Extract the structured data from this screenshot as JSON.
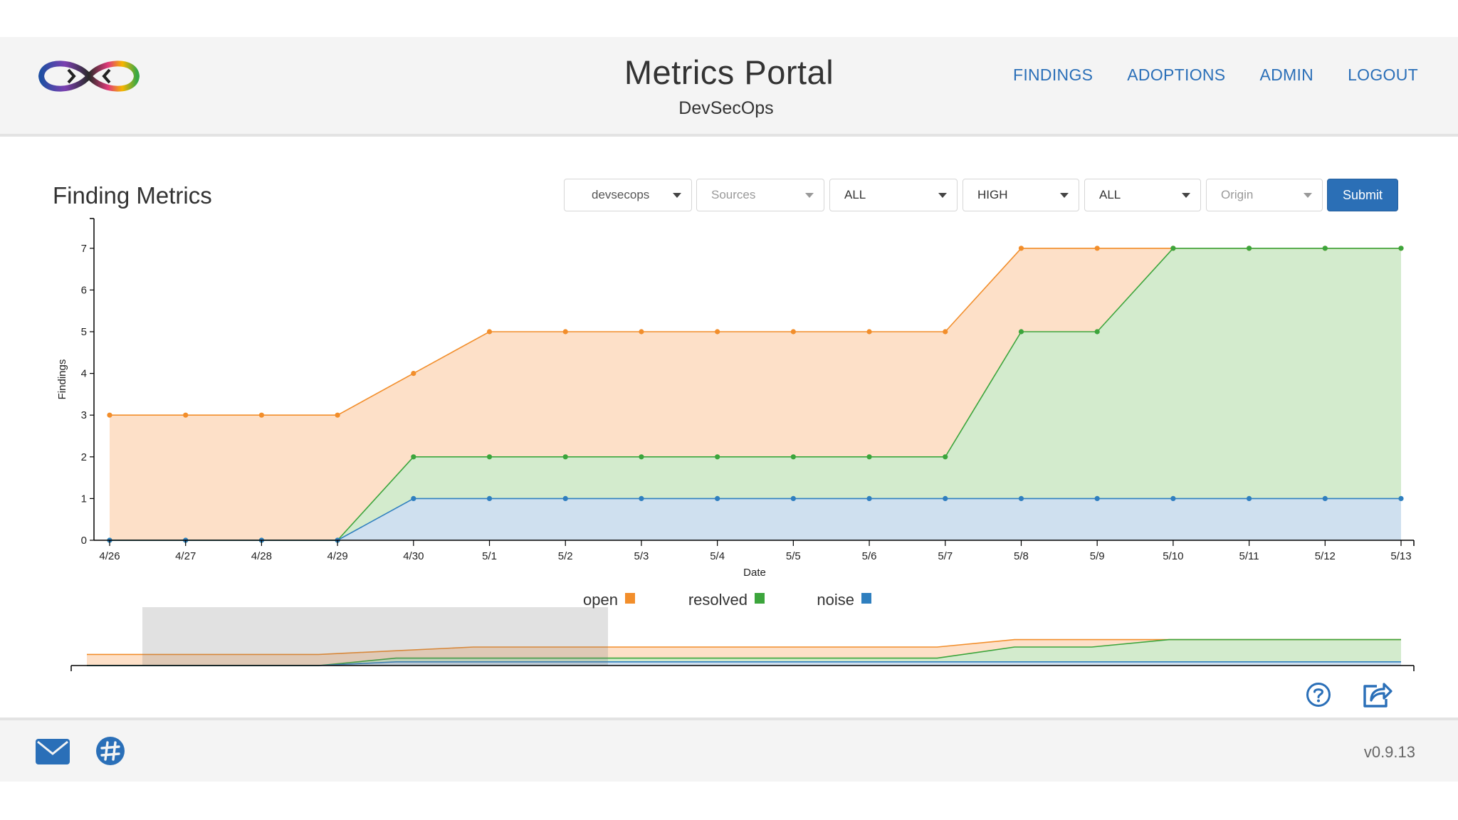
{
  "header": {
    "title": "Metrics Portal",
    "subtitle": "DevSecOps",
    "nav": [
      "FINDINGS",
      "ADOPTIONS",
      "ADMIN",
      "LOGOUT"
    ]
  },
  "page": {
    "heading": "Finding Metrics"
  },
  "filters": {
    "team": "devsecops",
    "sources_placeholder": "Sources",
    "filter3": "ALL",
    "severity": "HIGH",
    "filter5": "ALL",
    "origin_placeholder": "Origin",
    "submit_label": "Submit"
  },
  "chart_data": {
    "type": "area",
    "xlabel": "Date",
    "ylabel": "Findings",
    "categories": [
      "4/26",
      "4/27",
      "4/28",
      "4/29",
      "4/30",
      "5/1",
      "5/2",
      "5/3",
      "5/4",
      "5/5",
      "5/6",
      "5/7",
      "5/8",
      "5/9",
      "5/10",
      "5/11",
      "5/12",
      "5/13"
    ],
    "ylim": [
      0,
      7.5
    ],
    "yticks": [
      0,
      1,
      2,
      3,
      4,
      5,
      6,
      7
    ],
    "series": [
      {
        "name": "open",
        "color": "#f28e2b",
        "values": [
          3,
          3,
          3,
          3,
          4,
          5,
          5,
          5,
          5,
          5,
          5,
          5,
          7,
          7,
          7,
          7,
          7,
          7
        ]
      },
      {
        "name": "resolved",
        "color": "#3ca53c",
        "values": [
          0,
          0,
          0,
          0,
          2,
          2,
          2,
          2,
          2,
          2,
          2,
          2,
          5,
          5,
          7,
          7,
          7,
          7
        ]
      },
      {
        "name": "noise",
        "color": "#2f7fbf",
        "values": [
          0,
          0,
          0,
          0,
          1,
          1,
          1,
          1,
          1,
          1,
          1,
          1,
          1,
          1,
          1,
          1,
          1,
          1
        ]
      }
    ],
    "legend": "bottom-center",
    "grid": false
  },
  "footer": {
    "version": "v0.9.13",
    "icons": [
      "mail-icon",
      "slack-icon"
    ]
  },
  "actions": {
    "icons": [
      "help-icon",
      "share-icon"
    ]
  }
}
